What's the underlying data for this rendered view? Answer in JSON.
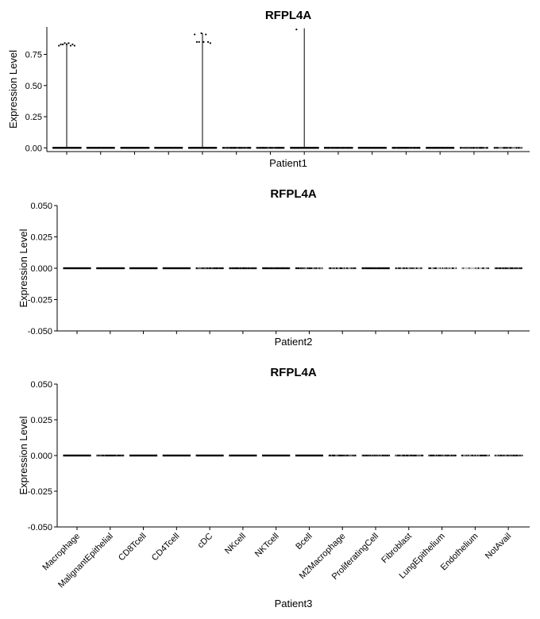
{
  "chart_data": [
    {
      "type": "scatter",
      "subtype": "violin-jitter",
      "title": "RFPL4A",
      "xlabel": "Patient1",
      "ylabel": "Expression Level",
      "ylim": [
        -0.03,
        0.97
      ],
      "yticks": [
        0.0,
        0.25,
        0.5,
        0.75
      ],
      "ytick_labels": [
        "0.00",
        "0.25",
        "0.50",
        "0.75"
      ],
      "categories": [
        "Macrophage",
        "MalignantEpithelial",
        "CD8Tcell",
        "CD4Tcell",
        "cDC",
        "NKcell",
        "NKTcell",
        "Bcell",
        "M2Macrophage",
        "ProliferatingCell",
        "Fibroblast",
        "LungEpithelium",
        "Endothelium",
        "NotAvail"
      ],
      "show_category_labels": false,
      "grid": false,
      "legend": "none",
      "series": [
        {
          "values": [
            0,
            0,
            0,
            0,
            0,
            0,
            0,
            0,
            0,
            0,
            0,
            0,
            0,
            0
          ],
          "violin_max": [
            0.84,
            0,
            0,
            0,
            0.92,
            0,
            0,
            0.96,
            0,
            0,
            0,
            0,
            0,
            0
          ],
          "band_density": [
            1.0,
            1.0,
            1.0,
            1.0,
            1.0,
            0.8,
            0.8,
            1.0,
            0.9,
            1.0,
            0.9,
            1.0,
            0.6,
            0.5
          ],
          "outliers": [
            {
              "category": "Macrophage",
              "y": [
                0.82,
                0.83,
                0.83,
                0.84,
                0.83,
                0.84,
                0.82,
                0.83,
                0.82
              ]
            },
            {
              "category": "cDC",
              "y": [
                0.91,
                0.85,
                0.85,
                0.92,
                0.85,
                0.91,
                0.85,
                0.84
              ]
            },
            {
              "category": "Bcell",
              "y": [
                0.95
              ]
            }
          ]
        }
      ]
    },
    {
      "type": "scatter",
      "subtype": "violin-jitter",
      "title": "RFPL4A",
      "xlabel": "Patient2",
      "ylabel": "Expression Level",
      "ylim": [
        -0.05,
        0.05
      ],
      "yticks": [
        -0.05,
        -0.025,
        0.0,
        0.025,
        0.05
      ],
      "ytick_labels": [
        "-0.050",
        "-0.025",
        "0.000",
        "0.025",
        "0.050"
      ],
      "categories": [
        "Macrophage",
        "MalignantEpithelial",
        "CD8Tcell",
        "CD4Tcell",
        "cDC",
        "NKcell",
        "NKTcell",
        "Bcell",
        "M2Macrophage",
        "ProliferatingCell",
        "Fibroblast",
        "LungEpithelium",
        "Endothelium",
        "NotAvail"
      ],
      "show_category_labels": false,
      "grid": false,
      "legend": "none",
      "series": [
        {
          "values": [
            0,
            0,
            0,
            0,
            0,
            0,
            0,
            0,
            0,
            0,
            0,
            0,
            0,
            0
          ],
          "band_density": [
            1.0,
            1.0,
            1.0,
            1.0,
            0.6,
            0.8,
            0.9,
            0.5,
            0.4,
            0.9,
            0.4,
            0.3,
            0.05,
            0.6
          ],
          "outliers": []
        }
      ]
    },
    {
      "type": "scatter",
      "subtype": "violin-jitter",
      "title": "RFPL4A",
      "xlabel": "Patient3",
      "ylabel": "Expression Level",
      "ylim": [
        -0.05,
        0.05
      ],
      "yticks": [
        -0.05,
        -0.025,
        0.0,
        0.025,
        0.05
      ],
      "ytick_labels": [
        "-0.050",
        "-0.025",
        "0.000",
        "0.025",
        "0.050"
      ],
      "categories": [
        "Macrophage",
        "MalignantEpithelial",
        "CD8Tcell",
        "CD4Tcell",
        "cDC",
        "NKcell",
        "NKTcell",
        "Bcell",
        "M2Macrophage",
        "ProliferatingCell",
        "Fibroblast",
        "LungEpithelium",
        "Endothelium",
        "NotAvail"
      ],
      "show_category_labels": true,
      "grid": false,
      "legend": "none",
      "series": [
        {
          "values": [
            0,
            0,
            0,
            0,
            0,
            0,
            0,
            0,
            0,
            0,
            0,
            0,
            0,
            0
          ],
          "band_density": [
            1.0,
            0.7,
            1.0,
            1.0,
            1.0,
            1.0,
            1.0,
            1.0,
            0.6,
            0.6,
            0.6,
            0.6,
            0.5,
            0.5
          ],
          "outliers": []
        }
      ]
    }
  ]
}
